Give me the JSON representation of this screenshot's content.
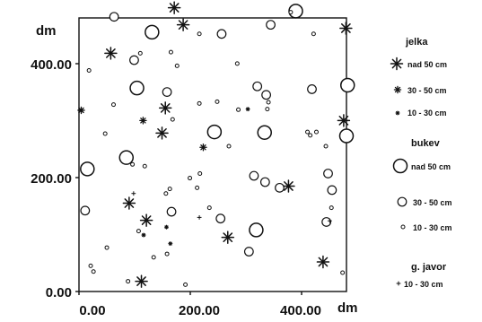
{
  "chart_data": {
    "type": "scatter",
    "x_unit": "dm",
    "y_unit": "dm",
    "xlim": [
      0,
      480
    ],
    "ylim": [
      0,
      480
    ],
    "x_ticks": [
      "0.00",
      "200.00",
      "400.00"
    ],
    "y_ticks": [
      "0.00",
      "200.00",
      "400.00"
    ],
    "x_tick_values": [
      0,
      200,
      400
    ],
    "y_tick_values": [
      0,
      200,
      400
    ],
    "grid": false,
    "legend_position": "right",
    "legend": [
      {
        "title": "jelka",
        "entries": [
          {
            "series": "jelka_nad50",
            "label": "nad 50 cm"
          },
          {
            "series": "jelka_30_50",
            "label": "30 - 50 cm"
          },
          {
            "series": "jelka_10_30",
            "label": "10 - 30 cm"
          }
        ]
      },
      {
        "title": "bukev",
        "entries": [
          {
            "series": "bukev_nad50",
            "label": "nad 50 cm"
          },
          {
            "series": "bukev_30_50",
            "label": "30 - 50 cm"
          },
          {
            "series": "bukev_10_30",
            "label": "10 - 30 cm"
          }
        ]
      },
      {
        "title": "g. javor",
        "entries": [
          {
            "series": "javor_10_30",
            "label": "10 - 30 cm"
          }
        ]
      }
    ],
    "series": [
      {
        "id": "jelka_nad50",
        "marker": "star-large",
        "points": [
          [
            479,
            462
          ],
          [
            57,
            418
          ],
          [
            376,
            185
          ],
          [
            267,
            95
          ],
          [
            90,
            155
          ],
          [
            121,
            125
          ],
          [
            438,
            52
          ],
          [
            112,
            18
          ],
          [
            475,
            300
          ],
          [
            155,
            322
          ],
          [
            149,
            278
          ],
          [
            187,
            468
          ],
          [
            171,
            498
          ]
        ]
      },
      {
        "id": "jelka_30_50",
        "marker": "star-medium",
        "points": [
          [
            4,
            318
          ],
          [
            115,
            300
          ],
          [
            223,
            253
          ]
        ]
      },
      {
        "id": "jelka_10_30",
        "marker": "star-small",
        "points": [
          [
            303,
            320
          ],
          [
            116,
            99
          ],
          [
            157,
            113
          ],
          [
            164,
            84
          ]
        ]
      },
      {
        "id": "bukev_nad50",
        "marker": "circle-large",
        "points": [
          [
            389,
            492
          ],
          [
            131,
            455
          ],
          [
            104,
            357
          ],
          [
            243,
            280
          ],
          [
            333,
            279
          ],
          [
            85,
            235
          ],
          [
            15,
            215
          ],
          [
            482,
            362
          ],
          [
            480,
            273
          ],
          [
            318,
            108
          ]
        ]
      },
      {
        "id": "bukev_30_50",
        "marker": "circle-medium",
        "points": [
          [
            63,
            482
          ],
          [
            256,
            452
          ],
          [
            344,
            468
          ],
          [
            99,
            406
          ],
          [
            158,
            350
          ],
          [
            320,
            360
          ],
          [
            336,
            345
          ],
          [
            418,
            355
          ],
          [
            166,
            140
          ],
          [
            254,
            128
          ],
          [
            314,
            203
          ],
          [
            334,
            192
          ],
          [
            360,
            182
          ],
          [
            447,
            207
          ],
          [
            454,
            178
          ],
          [
            444,
            122
          ],
          [
            11,
            142
          ],
          [
            305,
            70
          ]
        ]
      },
      {
        "id": "bukev_10_30",
        "marker": "circle-small",
        "points": [
          [
            18,
            388
          ],
          [
            110,
            418
          ],
          [
            165,
            420
          ],
          [
            176,
            396
          ],
          [
            216,
            452
          ],
          [
            284,
            400
          ],
          [
            380,
            490
          ],
          [
            421,
            452
          ],
          [
            62,
            328
          ],
          [
            47,
            277
          ],
          [
            168,
            302
          ],
          [
            216,
            330
          ],
          [
            248,
            333
          ],
          [
            340,
            332
          ],
          [
            338,
            320
          ],
          [
            286,
            319
          ],
          [
            410,
            280
          ],
          [
            426,
            280
          ],
          [
            269,
            255
          ],
          [
            96,
            223
          ],
          [
            118,
            220
          ],
          [
            415,
            274
          ],
          [
            443,
            255
          ],
          [
            163,
            180
          ],
          [
            199,
            199
          ],
          [
            212,
            182
          ],
          [
            217,
            207
          ],
          [
            107,
            106
          ],
          [
            156,
            172
          ],
          [
            134,
            60
          ],
          [
            158,
            66
          ],
          [
            50,
            77
          ],
          [
            21,
            45
          ],
          [
            26,
            35
          ],
          [
            88,
            18
          ],
          [
            191,
            12
          ],
          [
            234,
            147
          ],
          [
            473,
            33
          ],
          [
            453,
            147
          ]
        ]
      },
      {
        "id": "javor_10_30",
        "marker": "plus-small",
        "points": [
          [
            98,
            172
          ],
          [
            216,
            130
          ],
          [
            450,
            124
          ]
        ]
      }
    ]
  }
}
